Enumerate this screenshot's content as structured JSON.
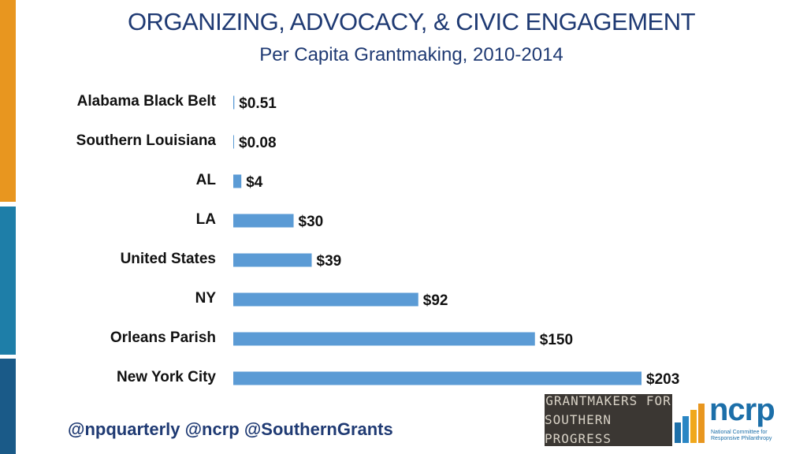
{
  "colors": {
    "bar": "#5b9bd5",
    "title": "#1f3a73",
    "strip_orange": "#e8961f",
    "strip_teal": "#1e7ea8",
    "strip_navy": "#1a5a88",
    "logo_bg": "#3b3733"
  },
  "chart_data": {
    "type": "bar",
    "orientation": "horizontal",
    "title": "ORGANIZING, ADVOCACY, & CIVIC ENGAGEMENT",
    "subtitle": "Per Capita Grantmaking, 2010-2014",
    "categories": [
      "Alabama Black Belt",
      "Southern Louisiana",
      "AL",
      "LA",
      "United States",
      "NY",
      "Orleans Parish",
      "New York City"
    ],
    "values": [
      0.51,
      0.08,
      4,
      30,
      39,
      92,
      150,
      203
    ],
    "data_labels": [
      "$0.51",
      "$0.08",
      "$4",
      "$30",
      "$39",
      "$92",
      "$150",
      "$203"
    ],
    "xlim": [
      0,
      203
    ],
    "grid": false,
    "legend": "none"
  },
  "footer": {
    "handles": "@npquarterly @ncrp @SouthernGrants"
  },
  "logos": {
    "gsp_line1": "GRANTMAKERS FOR",
    "gsp_line2": "SOUTHERN PROGRESS",
    "ncrp_word": "ncrp",
    "ncrp_sub": "National Committee for Responsive Philanthropy"
  }
}
